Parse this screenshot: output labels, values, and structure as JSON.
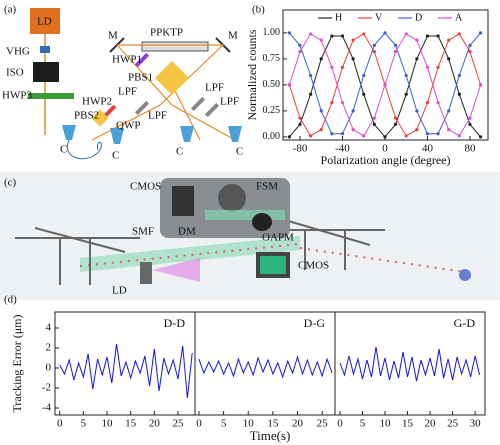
{
  "panel_labels": [
    "(a)",
    "(b)",
    "(c)",
    "(d)"
  ],
  "setup": {
    "a_labels": [
      "LD",
      "VHG",
      "ISO",
      "HWP3",
      "M",
      "PPKTP",
      "M",
      "HWP1",
      "PBS1",
      "LPF",
      "HWP2",
      "PBS2",
      "QWP",
      "LPF",
      "LPF",
      "LPF",
      "C",
      "C",
      "C",
      "C"
    ],
    "c_labels": [
      "CMOS",
      "FSM",
      "SMF",
      "DM",
      "OAPM",
      "LD",
      "CMOS"
    ]
  },
  "chart_data": [
    {
      "type": "line",
      "xlabel": "Polarization angle (degree)",
      "ylabel": "Normalized counts",
      "x": [
        -90,
        -80,
        -70,
        -60,
        -50,
        -40,
        -30,
        -20,
        -10,
        0,
        10,
        20,
        30,
        40,
        50,
        60,
        70,
        80,
        90
      ],
      "xlim": [
        -96,
        97
      ],
      "xticks": [
        -80,
        -40,
        0,
        40,
        80
      ],
      "ylim": [
        -0.03,
        1.22
      ],
      "yticks": [
        {
          "value": 0,
          "label": "0.00"
        },
        {
          "value": 0.25,
          "label": "0.25"
        },
        {
          "value": 0.5,
          "label": "0.50"
        },
        {
          "value": 0.75,
          "label": "0.75"
        },
        {
          "value": 1,
          "label": "1.00"
        }
      ],
      "legend": "top",
      "series": [
        {
          "name": "H",
          "color": "#222222",
          "values": [
            0,
            0.12,
            0.41,
            0.75,
            0.97,
            0.97,
            0.75,
            0.41,
            0.12,
            0,
            0.12,
            0.41,
            0.75,
            0.97,
            0.97,
            0.75,
            0.41,
            0.12,
            0
          ]
        },
        {
          "name": "V",
          "color": "#e8413a",
          "values": [
            0.5,
            0.18,
            0.01,
            0.07,
            0.33,
            0.67,
            0.93,
            0.99,
            0.82,
            0.5,
            0.18,
            0.01,
            0.07,
            0.33,
            0.67,
            0.93,
            0.99,
            0.82,
            0.5
          ]
        },
        {
          "name": "D",
          "color": "#3f5fd8",
          "values": [
            1,
            0.88,
            0.59,
            0.25,
            0.03,
            0.03,
            0.25,
            0.59,
            0.88,
            1,
            0.88,
            0.59,
            0.25,
            0.03,
            0.03,
            0.25,
            0.59,
            0.88,
            1
          ]
        },
        {
          "name": "A",
          "color": "#d94fd0",
          "values": [
            0.5,
            0.82,
            0.99,
            0.93,
            0.67,
            0.33,
            0.07,
            0.01,
            0.18,
            0.5,
            0.82,
            0.99,
            0.93,
            0.67,
            0.33,
            0.07,
            0.01,
            0.18,
            0.5
          ]
        }
      ]
    },
    {
      "type": "line",
      "xlabel": "Time(s)",
      "ylabel": "Tracking Error (μm)",
      "ylim": [
        -4.7,
        5.6
      ],
      "yticks": [
        -4,
        -2,
        0,
        2,
        4
      ],
      "color": "#1414e6",
      "panels": [
        {
          "name": "D-D",
          "xlim": [
            -1,
            28.6
          ],
          "xticks": [
            0,
            5,
            10,
            15,
            20,
            25
          ],
          "x": [
            0,
            1,
            2,
            3,
            4,
            5,
            6,
            7,
            8,
            9,
            10,
            11,
            12,
            13,
            14,
            15,
            16,
            17,
            18,
            19,
            20,
            21,
            22,
            23,
            24,
            25,
            26,
            27,
            28
          ],
          "values": [
            0.3,
            -0.6,
            0.8,
            -1.2,
            0.5,
            -0.9,
            1.4,
            -2.1,
            0.9,
            -0.7,
            1.1,
            -1.5,
            2.4,
            -0.8,
            0.6,
            -1.0,
            0.7,
            -0.5,
            1.2,
            -1.8,
            1.9,
            -2.3,
            1.0,
            -0.6,
            0.8,
            -1.1,
            2.2,
            -3.0,
            1.5
          ]
        },
        {
          "name": "D-G",
          "xlim": [
            -0.8,
            27.6
          ],
          "xticks": [
            0,
            5,
            10,
            15,
            20,
            25
          ],
          "x": [
            0,
            1,
            2,
            3,
            4,
            5,
            6,
            7,
            8,
            9,
            10,
            11,
            12,
            13,
            14,
            15,
            16,
            17,
            18,
            19,
            20,
            21,
            22,
            23,
            24,
            25,
            26,
            27
          ],
          "values": [
            0.9,
            -0.5,
            0.6,
            -0.4,
            0.7,
            -0.6,
            0.5,
            -0.8,
            0.9,
            -0.5,
            0.6,
            -0.7,
            1.0,
            -0.4,
            0.8,
            -0.6,
            0.5,
            -0.9,
            0.7,
            -0.5,
            1.1,
            -0.6,
            0.8,
            -0.7,
            0.6,
            -0.8,
            0.9,
            -0.5
          ]
        },
        {
          "name": "G-D",
          "xlim": [
            -1.1,
            32.2
          ],
          "xticks": [
            0,
            5,
            10,
            15,
            20,
            25,
            30
          ],
          "x": [
            0,
            1,
            2,
            3,
            4,
            5,
            6,
            7,
            8,
            9,
            10,
            11,
            12,
            13,
            14,
            15,
            16,
            17,
            18,
            19,
            20,
            21,
            22,
            23,
            24,
            25,
            26,
            27,
            28,
            29,
            30,
            31
          ],
          "values": [
            0.5,
            -0.7,
            1.2,
            -0.6,
            0.9,
            -1.1,
            0.8,
            -0.9,
            2.1,
            -0.8,
            1.0,
            -1.2,
            0.7,
            -1.0,
            1.6,
            -0.9,
            1.1,
            -1.3,
            0.8,
            -0.7,
            1.0,
            -0.8,
            1.9,
            -1.0,
            0.9,
            -1.2,
            1.1,
            -0.6,
            0.8,
            -0.9,
            1.2,
            -0.7
          ]
        }
      ]
    }
  ]
}
